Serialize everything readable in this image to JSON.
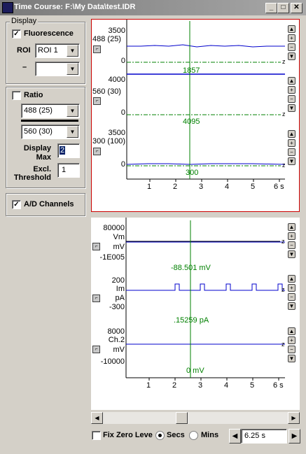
{
  "window": {
    "title": "Time Course: F:\\My Data\\test.IDR"
  },
  "display_group": {
    "label": "Display",
    "fluorescence_label": "Fluorescence",
    "fluorescence_checked": true,
    "roi_label": "ROI",
    "roi_value": "ROI 1",
    "roi2_label": "–",
    "roi2_value": ""
  },
  "ratio_group": {
    "ratio_label": "Ratio",
    "ratio_checked": false,
    "numerator": "488 (25)",
    "denominator": "560 (30)",
    "display_max_label_1": "Display",
    "display_max_label_2": "Max",
    "display_max_value": "2",
    "excl_label_1": "Excl.",
    "excl_label_2": "Threshold",
    "excl_value": "1"
  },
  "ad_group": {
    "label": "A/D Channels",
    "checked": true
  },
  "fluor_plot": {
    "traces": [
      {
        "name": "488 (25)",
        "ymax": "3500",
        "ymin": "0",
        "cursor_value": "1857"
      },
      {
        "name": "560 (30)",
        "ymax": "4000",
        "ymin": "0",
        "cursor_value": "4095"
      },
      {
        "name": "300 (100)",
        "ymax": "3500",
        "ymin": "0",
        "cursor_value": "300"
      }
    ],
    "x_ticks": [
      "1",
      "2",
      "3",
      "4",
      "5",
      "6 s"
    ]
  },
  "ad_plot": {
    "traces": [
      {
        "name": "Vm",
        "unit": "mV",
        "ymax": "80000",
        "ymin": "-1E005",
        "cursor_value": "-88.501 mV"
      },
      {
        "name": "Im",
        "unit": "pA",
        "ymax": "200",
        "ymin": "-300",
        "cursor_value": ".15259 pA"
      },
      {
        "name": "Ch.2",
        "unit": "mV",
        "ymax": "8000",
        "ymin": "-10000",
        "cursor_value": "0 mV"
      }
    ],
    "x_ticks": [
      "1",
      "2",
      "3",
      "4",
      "5",
      "6 s"
    ]
  },
  "bottom": {
    "fix_zero_label": "Fix Zero Leve",
    "fix_zero_checked": false,
    "secs_label": "Secs",
    "mins_label": "Mins",
    "time_value": "6.25 s"
  },
  "colors": {
    "trace": "#0000cc",
    "cursor": "#008000",
    "zero": "#008000",
    "highlight_border": "#cc0000"
  }
}
